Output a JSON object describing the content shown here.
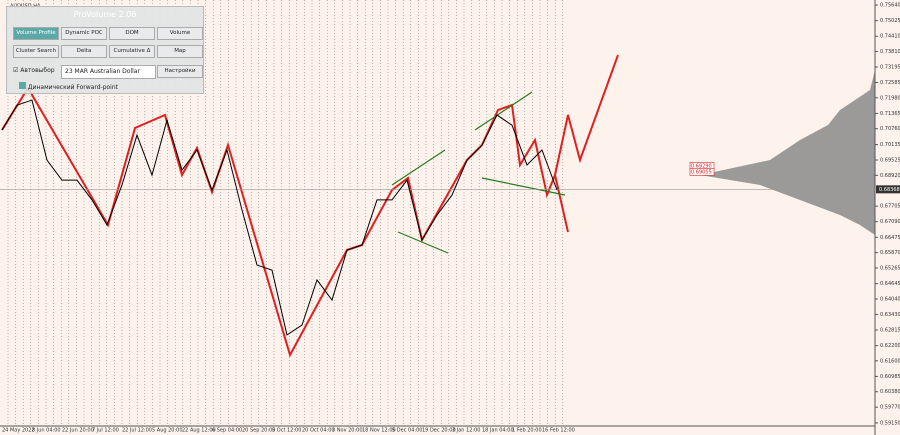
{
  "symbol": "AUDUSD,H4",
  "panel": {
    "title": "ProVolume 2.06",
    "buttons": [
      "Volume Profile",
      "Dynamic POC",
      "DOM",
      "Volume",
      "Cluster Search",
      "Delta",
      "Cumulative Δ",
      "Map"
    ],
    "auto": "Автовыбор",
    "instrument": "23 MAR Australian Dollar",
    "settings": "Настройки",
    "forward": "Динамический Forward-point"
  },
  "chart_data": {
    "type": "line",
    "categories": [
      "24 May 2022",
      null,
      "8 Jun 04:00",
      null,
      "22 Jun 20:00",
      null,
      "7 Jul 12:00",
      null,
      "22 Jul 12:00",
      null,
      "5 Aug 20:00",
      null,
      "22 Aug 12:00",
      null,
      "6 Sep 04:00",
      null,
      "20 Sep 20:00",
      null,
      "5 Oct 12:00",
      null,
      "20 Oct 04:00",
      null,
      "3 Nov 20:00",
      null,
      "18 Nov 12:00",
      null,
      "5 Dec 04:00",
      null,
      "19 Dec 20:00",
      null,
      "3 Jan 12:00",
      null,
      "18 Jan 04:00",
      null,
      "1 Feb 20:00",
      null,
      "16 Feb 12:00",
      null
    ],
    "series": [
      {
        "color": "#000000",
        "values": [
          0.7071,
          0.7169,
          0.7189,
          0.6952,
          0.6873,
          0.6873,
          0.6795,
          0.6696,
          0.6854,
          0.7051,
          0.6893,
          0.711,
          0.6913,
          0.6992,
          0.6834,
          0.6992,
          0.6755,
          0.6538,
          0.6518,
          0.6262,
          0.6301,
          0.6479,
          0.64,
          0.6597,
          0.6617,
          0.6795,
          0.6795,
          0.6873,
          0.6637,
          0.6735,
          0.6814,
          0.6952,
          0.7011,
          0.713,
          0.709,
          0.6933,
          0.6992,
          0.6834
        ]
      }
    ],
    "ylim": [
      0.5887,
      0.7584
    ],
    "yticks": [
      {
        "value": 0.7564,
        "label": "0.75640"
      },
      {
        "value": 0.75025,
        "label": "0.75025"
      },
      {
        "value": 0.7441,
        "label": "0.74410"
      },
      {
        "value": 0.7381,
        "label": "0.73810"
      },
      {
        "value": 0.73195,
        "label": "0.73195"
      },
      {
        "value": 0.72585,
        "label": "0.72585"
      },
      {
        "value": 0.7198,
        "label": "0.71980"
      },
      {
        "value": 0.71365,
        "label": "0.71365"
      },
      {
        "value": 0.7076,
        "label": "0.70760"
      },
      {
        "value": 0.70135,
        "label": "0.70135"
      },
      {
        "value": 0.69525,
        "label": "0.69525"
      },
      {
        "value": 0.6892,
        "label": "0.68920"
      },
      {
        "value": 0.67705,
        "label": "0.67705"
      },
      {
        "value": 0.6709,
        "label": "0.67090"
      },
      {
        "value": 0.66475,
        "label": "0.66475"
      },
      {
        "value": 0.6587,
        "label": "0.65870"
      },
      {
        "value": 0.65265,
        "label": "0.65265"
      },
      {
        "value": 0.64645,
        "label": "0.64645"
      },
      {
        "value": 0.6404,
        "label": "0.64040"
      },
      {
        "value": 0.6343,
        "label": "0.63430"
      },
      {
        "value": 0.62815,
        "label": "0.62815"
      },
      {
        "value": 0.622,
        "label": "0.62200"
      },
      {
        "value": 0.616,
        "label": "0.61600"
      },
      {
        "value": 0.60985,
        "label": "0.60985"
      },
      {
        "value": 0.6038,
        "label": "0.60380"
      },
      {
        "value": 0.5977,
        "label": "0.59770"
      },
      {
        "value": 0.5915,
        "label": "0.59150"
      }
    ],
    "current_price": {
      "value": 0.68368,
      "label": "0.68368"
    },
    "levels": [
      {
        "value": 0.6929,
        "label": "0.69290"
      },
      {
        "value": 0.69055,
        "label": "0.69055"
      }
    ]
  }
}
